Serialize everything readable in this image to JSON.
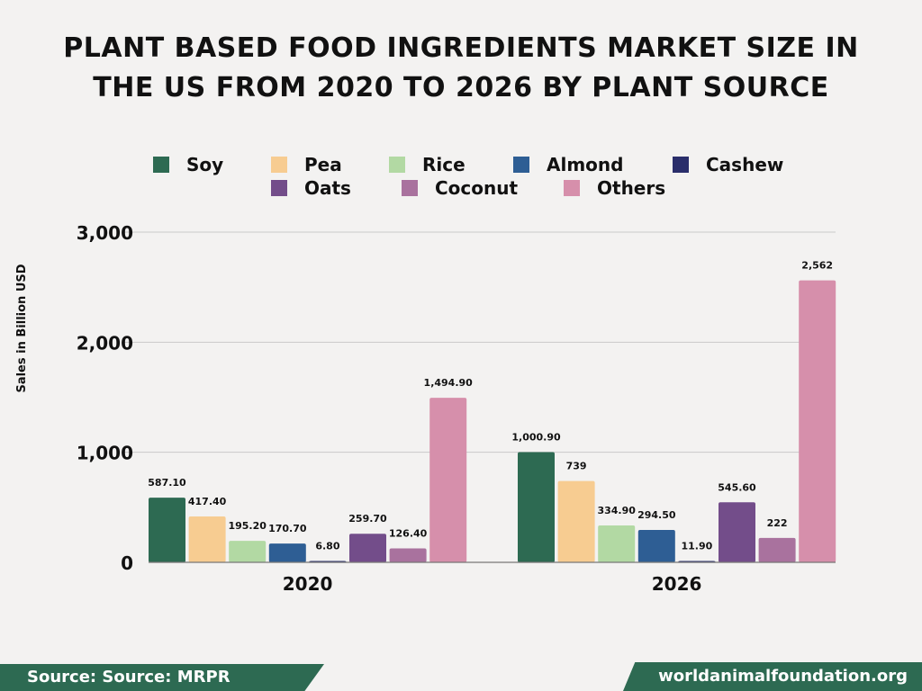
{
  "title": {
    "line1": "PLANT BASED FOOD INGREDIENTS MARKET SIZE IN",
    "line2": "THE US FROM 2020 TO 2026 BY PLANT SOURCE"
  },
  "footer": {
    "source": "Source: Source: MRPR",
    "website": "worldanimalfoundation.org"
  },
  "chart_data": {
    "type": "bar",
    "title": "PLANT BASED FOOD INGREDIENTS MARKET SIZE IN THE US FROM 2020 TO 2026 BY PLANT SOURCE",
    "ylabel": "Sales in Billion USD",
    "xlabel": "",
    "categories": [
      "2020",
      "2026"
    ],
    "ylim": [
      0,
      3000
    ],
    "yticks": [
      0,
      1000,
      2000,
      3000
    ],
    "ytick_labels": [
      "0",
      "1,000",
      "2,000",
      "3,000"
    ],
    "grid": true,
    "legend_position": "top",
    "series": [
      {
        "name": "Soy",
        "color": "#2d6a52",
        "values": [
          587.1,
          1000.9
        ],
        "labels": [
          "587.10",
          "1,000.90"
        ]
      },
      {
        "name": "Pea",
        "color": "#f7cc91",
        "values": [
          417.4,
          739
        ],
        "labels": [
          "417.40",
          "739"
        ]
      },
      {
        "name": "Rice",
        "color": "#b2d9a3",
        "values": [
          195.2,
          334.9
        ],
        "labels": [
          "195.20",
          "334.90"
        ]
      },
      {
        "name": "Almond",
        "color": "#2e5e94",
        "values": [
          170.7,
          294.5
        ],
        "labels": [
          "170.70",
          "294.50"
        ]
      },
      {
        "name": "Cashew",
        "color": "#2a2e6b",
        "values": [
          6.8,
          11.9
        ],
        "labels": [
          "6.80",
          "11.90"
        ]
      },
      {
        "name": "Oats",
        "color": "#734d8a",
        "values": [
          259.7,
          545.6
        ],
        "labels": [
          "259.70",
          "545.60"
        ]
      },
      {
        "name": "Coconut",
        "color": "#a9729e",
        "values": [
          126.4,
          222
        ],
        "labels": [
          "126.40",
          "222"
        ]
      },
      {
        "name": "Others",
        "color": "#d68fab",
        "values": [
          1494.9,
          2562
        ],
        "labels": [
          "1,494.90",
          "2,562"
        ]
      }
    ]
  }
}
